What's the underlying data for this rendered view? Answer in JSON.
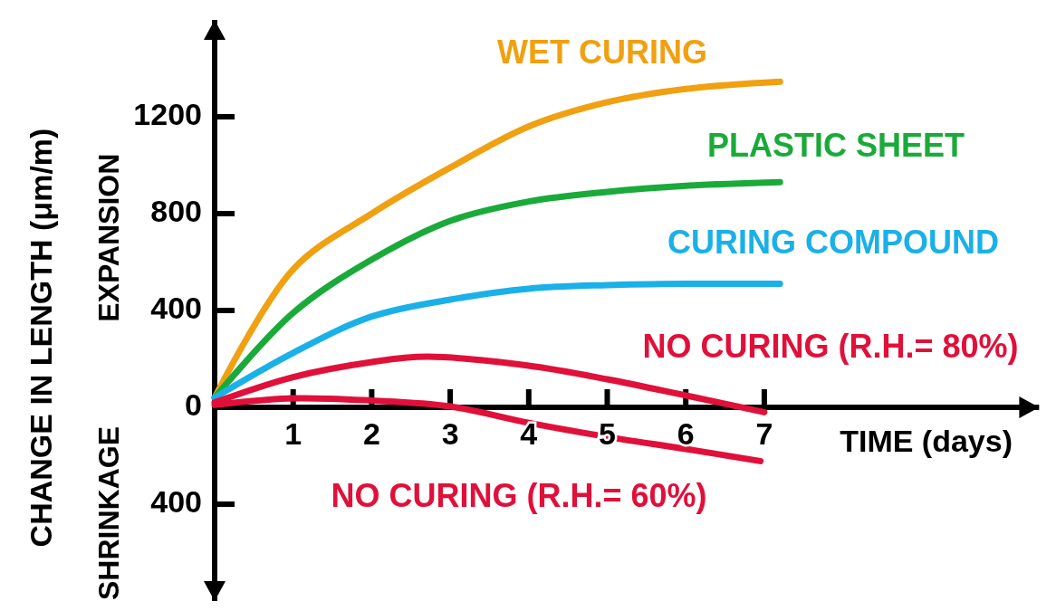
{
  "chart_data": {
    "type": "line",
    "ylabel": "CHANGE IN LENGTH (μm/m)",
    "xlabel": "TIME (days)",
    "annotations": [
      "EXPANSION",
      "SHRINKAGE"
    ],
    "xlim": [
      0,
      10.5
    ],
    "ylim": [
      -800,
      1600
    ],
    "xticks": [
      1,
      2,
      3,
      4,
      5,
      6,
      7
    ],
    "yticks": [
      {
        "value": -400,
        "label": "400"
      },
      0,
      400,
      800,
      1200
    ],
    "grid": false,
    "marker": "none",
    "line_style": "solid",
    "series": [
      {
        "name": "WET CURING",
        "color": "#f0a010",
        "x": [
          0,
          1,
          2,
          3,
          4,
          5,
          6,
          7.2
        ],
        "values": [
          40,
          570,
          800,
          990,
          1160,
          1260,
          1315,
          1345
        ]
      },
      {
        "name": "PLASTIC SHEET",
        "color": "#1aaa3a",
        "x": [
          0,
          1,
          2,
          3,
          4,
          5,
          6,
          7.2
        ],
        "values": [
          40,
          390,
          610,
          770,
          850,
          890,
          915,
          930
        ]
      },
      {
        "name": "CURING COMPOUND",
        "color": "#1ab0e8",
        "x": [
          0,
          1,
          2,
          3,
          4,
          5,
          6,
          7.2
        ],
        "values": [
          40,
          225,
          375,
          445,
          490,
          505,
          510,
          510
        ]
      },
      {
        "name": "NO CURING (R.H.= 80%)",
        "color": "#e0103a",
        "x": [
          0,
          1,
          2,
          2.7,
          4,
          5,
          6,
          7
        ],
        "values": [
          20,
          125,
          187,
          209,
          172,
          116,
          49,
          -20
        ]
      },
      {
        "name": "NO CURING (R.H.= 60%)",
        "color": "#e0103a",
        "x": [
          0,
          1,
          2,
          3,
          4,
          5,
          6,
          6.95
        ],
        "values": [
          10,
          37,
          28,
          4,
          -64,
          -122,
          -172,
          -222
        ]
      }
    ]
  }
}
